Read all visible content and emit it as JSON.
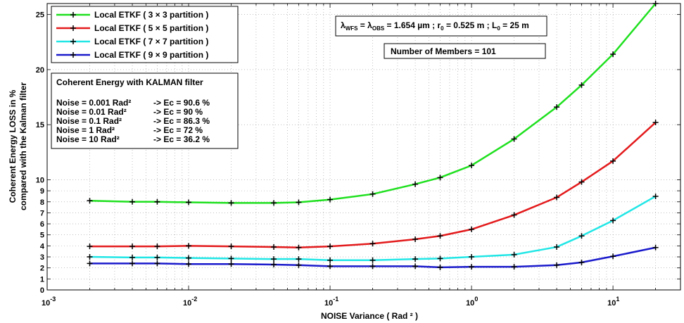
{
  "chart_data": {
    "type": "line",
    "xscale": "log",
    "xlim": [
      0.001,
      30
    ],
    "ylim": [
      0,
      26
    ],
    "grid": true,
    "xlabel": "NOISE   Variance  ( Rad ² )",
    "ylabel_lines": [
      "Coherent    Energy    LOSS    in    %",
      "compared    with    the    Kalman filter"
    ],
    "x_ticks": [
      {
        "value": 0.001,
        "base": "10",
        "exp": "-3"
      },
      {
        "value": 0.01,
        "base": "10",
        "exp": "-2"
      },
      {
        "value": 0.1,
        "base": "10",
        "exp": "-1"
      },
      {
        "value": 1,
        "base": "10",
        "exp": "0"
      },
      {
        "value": 10,
        "base": "10",
        "exp": "1"
      }
    ],
    "y_ticks": [
      0,
      1,
      2,
      3,
      4,
      5,
      6,
      7,
      8,
      9,
      10,
      15,
      20,
      25
    ],
    "x": [
      0.002,
      0.004,
      0.006,
      0.01,
      0.02,
      0.04,
      0.06,
      0.1,
      0.2,
      0.4,
      0.6,
      1,
      2,
      4,
      6,
      10,
      20
    ],
    "series": [
      {
        "name": "Local  ETKF  ( 3 × 3  partition )",
        "color": "#1fe01f",
        "values": [
          8.1,
          8.0,
          8.0,
          7.95,
          7.9,
          7.9,
          7.95,
          8.2,
          8.7,
          9.6,
          10.2,
          11.3,
          13.7,
          16.6,
          18.6,
          21.4,
          26.0
        ]
      },
      {
        "name": "Local  ETKF  ( 5 × 5  partition )",
        "color": "#e31a1c",
        "values": [
          3.95,
          3.95,
          3.95,
          4.0,
          3.95,
          3.9,
          3.85,
          3.95,
          4.2,
          4.6,
          4.9,
          5.5,
          6.8,
          8.4,
          9.8,
          11.7,
          15.2
        ]
      },
      {
        "name": "Local  ETKF  ( 7 × 7  partition )",
        "color": "#22e6e6",
        "values": [
          3.0,
          2.95,
          2.95,
          2.9,
          2.85,
          2.8,
          2.8,
          2.7,
          2.7,
          2.8,
          2.85,
          3.0,
          3.2,
          3.9,
          4.9,
          6.3,
          8.5
        ]
      },
      {
        "name": "Local  ETKF  ( 9 × 9  partition )",
        "color": "#1a1acc",
        "values": [
          2.4,
          2.4,
          2.4,
          2.35,
          2.35,
          2.3,
          2.25,
          2.15,
          2.15,
          2.15,
          2.05,
          2.1,
          2.1,
          2.25,
          2.5,
          3.05,
          3.85
        ]
      }
    ],
    "legend_position": "top-left",
    "annotations": {
      "coherent_box": {
        "title": "Coherent  Energy  with  KALMAN  filter",
        "rows": [
          {
            "noise": "Noise =  0.001  Rad²",
            "ec": "->  Ec = 90.6  %"
          },
          {
            "noise": "Noise =  0.01  Rad²",
            "ec": "->  Ec = 90  %"
          },
          {
            "noise": "Noise =  0.1  Rad²",
            "ec": "->  Ec = 86.3  %"
          },
          {
            "noise": "Noise =  1  Rad²",
            "ec": "->  Ec = 72  %"
          },
          {
            "noise": "Noise =  10  Rad²",
            "ec": "->  Ec = 36.2  %"
          }
        ]
      },
      "params": {
        "lambda": "λ",
        "wfs_sub": "WFS",
        "eq": " = ",
        "obs_sub": "OBS",
        "lambda_val": " = 1.654 µm   ;   r",
        "r_sub": "0",
        "r_val": " = 0.525 m  ;  L",
        "l_sub": "0",
        "l_val": " = 25 m"
      },
      "members": "Number   of   Members   =    101"
    }
  }
}
